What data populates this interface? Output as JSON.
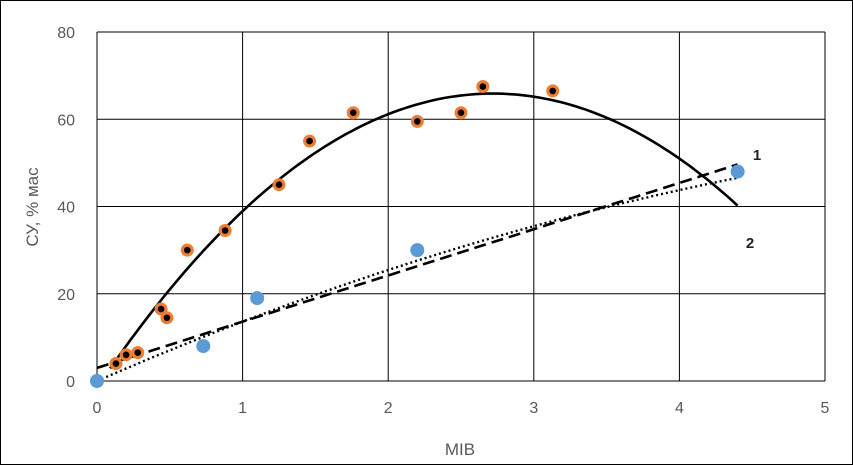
{
  "chart_data": {
    "type": "scatter",
    "xlabel": "МІВ",
    "ylabel": "СУ, % мас",
    "xlim": [
      0,
      5
    ],
    "ylim": [
      0,
      80
    ],
    "xticks": [
      "0",
      "1",
      "2",
      "3",
      "4",
      "5"
    ],
    "yticks": [
      "0",
      "20",
      "40",
      "60",
      "80"
    ],
    "grid": true,
    "legend": "none",
    "series": [
      {
        "color": "#ED7D31",
        "marker_center": "#000000",
        "points": [
          [
            0,
            0
          ],
          [
            0.13,
            4
          ],
          [
            0.2,
            6
          ],
          [
            0.28,
            6.5
          ],
          [
            0.44,
            16.5
          ],
          [
            0.48,
            14.5
          ],
          [
            0.62,
            30
          ],
          [
            0.88,
            34.5
          ],
          [
            1.25,
            45
          ],
          [
            1.46,
            55
          ],
          [
            1.76,
            61.5
          ],
          [
            2.2,
            59.5
          ],
          [
            2.5,
            61.5
          ],
          [
            2.65,
            67.5
          ],
          [
            3.13,
            66.5
          ]
        ]
      },
      {
        "color": "#5B9BD5",
        "points": [
          [
            0,
            0
          ],
          [
            0.73,
            8
          ],
          [
            1.1,
            19
          ],
          [
            2.2,
            30
          ],
          [
            4.4,
            48
          ]
        ]
      }
    ],
    "trendlines": [
      {
        "style": "solid",
        "color": "#000000",
        "coef": [
          -9.105,
          49.54,
          -1.5
        ],
        "x_range": [
          0.09,
          4.4
        ]
      },
      {
        "style": "dotted",
        "color": "#000000",
        "coef": [
          -0.89,
          14.5,
          0
        ],
        "x_range": [
          0,
          4.4
        ]
      },
      {
        "style": "dashed",
        "color": "#000000",
        "coef": [
          0,
          10.6,
          3
        ],
        "x_range": [
          0,
          4.4
        ]
      }
    ],
    "annotations": [
      "1",
      "2"
    ]
  }
}
